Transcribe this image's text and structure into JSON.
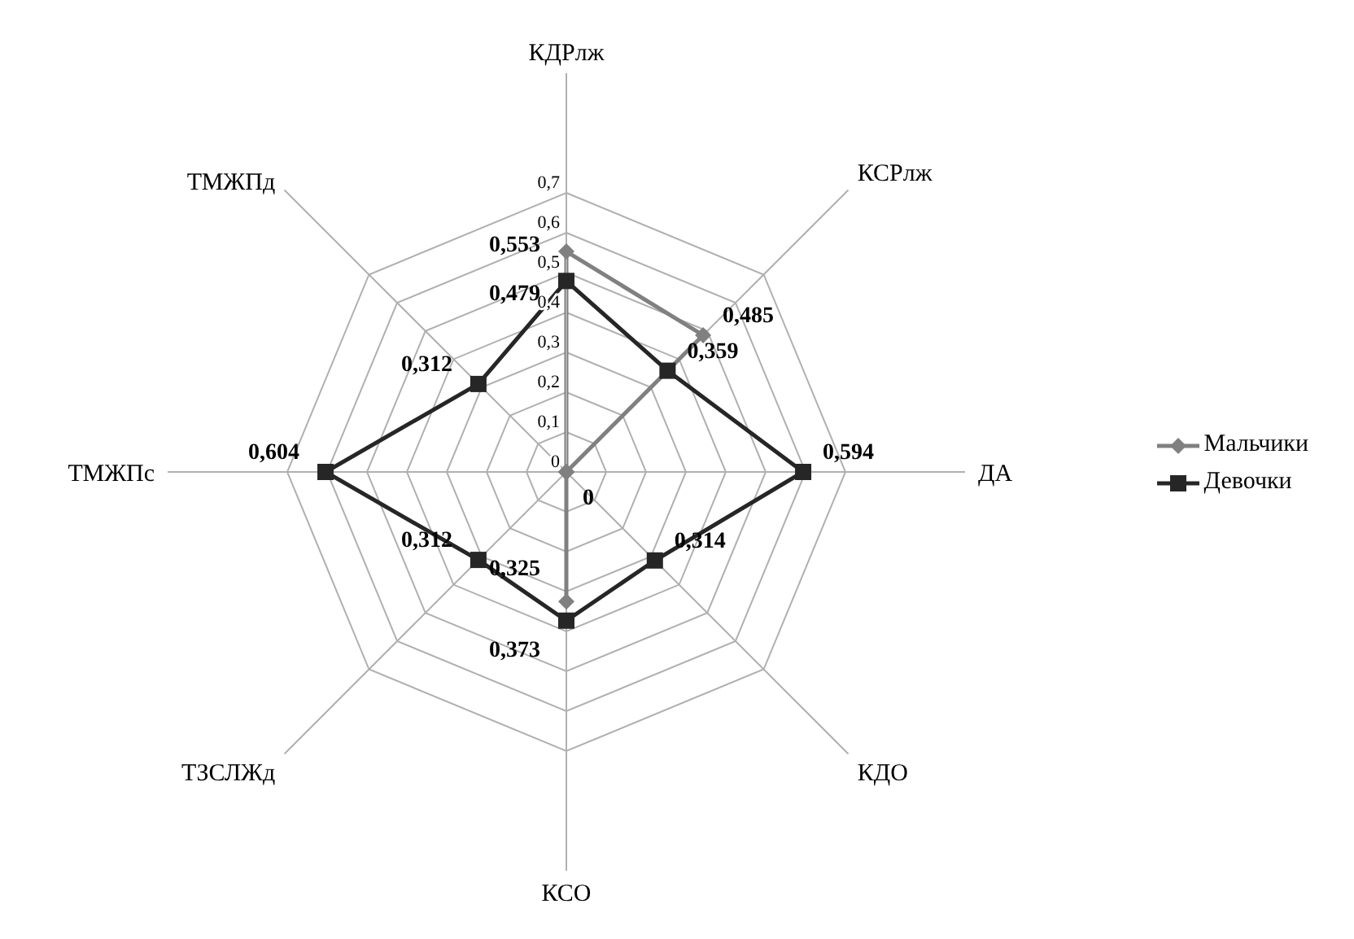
{
  "chart_data": {
    "type": "radar",
    "categories": [
      "КДРлж",
      "КСРлж",
      "ДА",
      "КДО",
      "КСО",
      "ТЗСЛЖд",
      "ТМЖПс",
      "ТМЖПд"
    ],
    "series": [
      {
        "name": "Мальчики",
        "color": "#808080",
        "marker": "diamond",
        "values": [
          0.553,
          0.485,
          0,
          0,
          0.325,
          0,
          0,
          0
        ],
        "value_labels": [
          "0,553",
          "0,485",
          "0",
          null,
          "0,325",
          null,
          null,
          null
        ]
      },
      {
        "name": "Девочки",
        "color": "#262626",
        "marker": "square",
        "values": [
          0.479,
          0.359,
          0.594,
          0.314,
          0.373,
          0.312,
          0.604,
          0.312
        ],
        "value_labels": [
          "0,479",
          "0,359",
          "0,594",
          "0,314",
          "0,373",
          "0,312",
          "0,604",
          "0,312"
        ]
      }
    ],
    "ylim": [
      0,
      0.7
    ],
    "yticks": [
      0,
      {
        "value": 0.1,
        "label": "0,1"
      },
      {
        "value": 0.2,
        "label": "0,2"
      },
      {
        "value": 0.3,
        "label": "0,3"
      },
      {
        "value": 0.4,
        "label": "0,4"
      },
      {
        "value": 0.5,
        "label": "0,5"
      },
      {
        "value": 0.6,
        "label": "0,6"
      },
      {
        "value": 0.7,
        "label": "0,7"
      }
    ],
    "grid": true,
    "legend": "right"
  }
}
